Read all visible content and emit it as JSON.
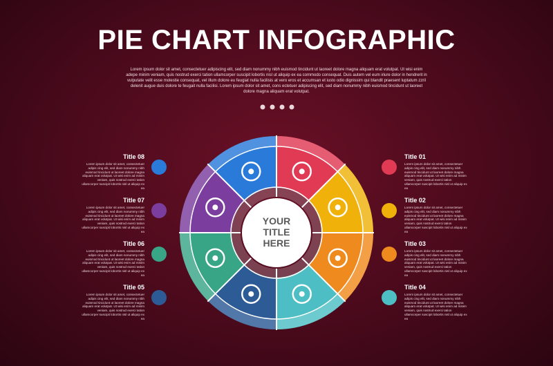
{
  "header": {
    "title": "PIE CHART INFOGRAPHIC",
    "description": "Lorem ipsum dolor sit amet, consectetuer adipiscing elit, sed diam nonummy nibh euismod tincidunt ut laoreet dolore magna aliquam erat volutpat. Ut wisi enim adepe minim veniam, quis nostrud exerci tation ullamcorper suscipit lobortis nisl ut aliquip ex ea commodo consequat. Duis autem vel eum iriure dolor in hendrerit in vulputate velit esse molestie consequat, vel illum dolore eu feugiat nulla facilisis at vero eros et accumsan et iusto odio dignissim qui blandit praesent luptatum zzril delenit augue duis dolore te feugait nulla facilisi. Lorem ipsum dolor sit amet, cons ectetuer adipiscing elit, sed diam nonummy nibh euismod tincidunt ut laoreet dolore magna aliquam erat volutpat."
  },
  "center_title": "YOUR TITLE HERE",
  "items": [
    {
      "title": "Title 01",
      "text": "Lorem ipsum dolor sit amet, consectetuer adipis cing elit, sed diam nonummy nibh euismod tincidunt ut laoreet dolore magna aliquam erat volutpat. Ut wisi enim ad minim veniam, quis nostrud exerci tation ullamcorper suscipit lobortis nisl ut aliquip ex ea",
      "color": "#e03a55"
    },
    {
      "title": "Title 02",
      "text": "Lorem ipsum dolor sit amet, consectetuer adipis cing elit, sed diam nonummy nibh euismod tincidunt ut laoreet dolore magna aliquam erat volutpat. Ut wisi enim ad minim veniam, quis nostrud exerci tation ullamcorper suscipit lobortis nisl ut aliquip ex ea",
      "color": "#f0b20a"
    },
    {
      "title": "Title 03",
      "text": "Lorem ipsum dolor sit amet, consectetuer adipis cing elit, sed diam nonummy nibh euismod tincidunt ut laoreet dolore magna aliquam erat volutpat. Ut wisi enim ad minim veniam, quis nostrud exerci tation ullamcorper suscipit lobortis nisl ut aliquip ex ea",
      "color": "#ef8a1e"
    },
    {
      "title": "Title 04",
      "text": "Lorem ipsum dolor sit amet, consectetuer adipis cing elit, sed diam nonummy nibh euismod tincidunt ut laoreet dolore magna aliquam erat volutpat. Ut wisi enim ad minim veniam, quis nostrud exerci tation ullamcorper suscipit lobortis nisl ut aliquip ex ea",
      "color": "#4dbfc4"
    },
    {
      "title": "Title 05",
      "text": "Lorem ipsum dolor sit amet, consectetuer adipis cing elit, sed diam nonummy nibh euismod tincidunt ut laoreet dolore magna aliquam erat volutpat. Ut wisi enim ad minim veniam, quis nostrud exerci tation ullamcorper suscipit lobortis nisl ut aliquip ex ea",
      "color": "#2d5b96"
    },
    {
      "title": "Title 06",
      "text": "Lorem ipsum dolor sit amet, consectetuer adipis cing elit, sed diam nonummy nibh euismod tincidunt ut laoreet dolore magna aliquam erat volutpat. Ut wisi enim ad minim veniam, quis nostrud exerci tation ullamcorper suscipit lobortis nisl ut aliquip ex ea",
      "color": "#39a587"
    },
    {
      "title": "Title 07",
      "text": "Lorem ipsum dolor sit amet, consectetuer adipis cing elit, sed diam nonummy nibh euismod tincidunt ut laoreet dolore magna aliquam erat volutpat. Ut wisi enim ad minim veniam, quis nostrud exerci tation ullamcorper suscipit lobortis nisl ut aliquip ex ea",
      "color": "#7b3e9e"
    },
    {
      "title": "Title 08",
      "text": "Lorem ipsum dolor sit amet, consectetuer adipis cing elit, sed diam nonummy nibh euismod tincidunt ut laoreet dolore magna aliquam erat volutpat. Ut wisi enim ad minim veniam, quis nostrud exerci tation ullamcorper suscipit lobortis nisl ut aliquip ex ea",
      "color": "#2a7ad9"
    }
  ]
}
